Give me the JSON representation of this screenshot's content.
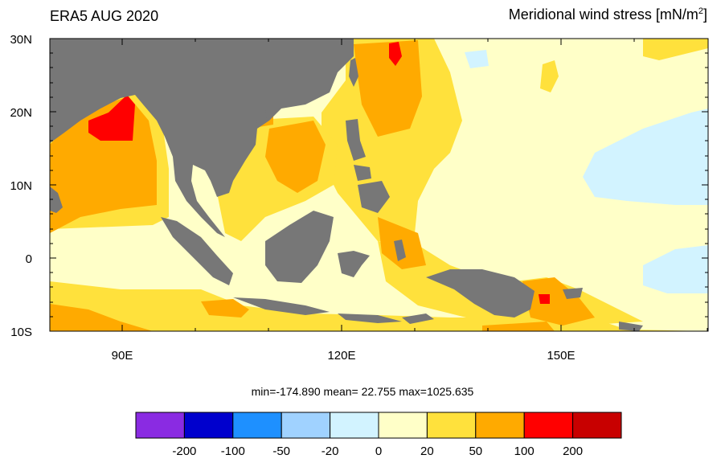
{
  "title_left": "ERA5 AUG 2020",
  "title_right": {
    "text": "Meridional wind stress [mN/m",
    "sup": "2",
    "close": "]"
  },
  "lat_labels": [
    "30N",
    "20N",
    "10N",
    "0",
    "10S"
  ],
  "lon_labels": [
    "90E",
    "120E",
    "150E"
  ],
  "stats": {
    "min": "-174.890",
    "mean": "22.755",
    "max": "1025.635"
  },
  "stats_text": "min=-174.890  mean=  22.755  max=1025.635",
  "colorbar": {
    "colors": [
      "#8a2be2",
      "#0000cd",
      "#1e90ff",
      "#a0d2ff",
      "#d2f3ff",
      "#ffffc8",
      "#ffe13c",
      "#ffaa00",
      "#ff0000",
      "#c80000"
    ],
    "labels": [
      "-200",
      "-100",
      "-50",
      "-20",
      "0",
      "20",
      "50",
      "100",
      "200"
    ]
  },
  "colors": {
    "land": "#777777",
    "background_field": "#ffffc8"
  }
}
